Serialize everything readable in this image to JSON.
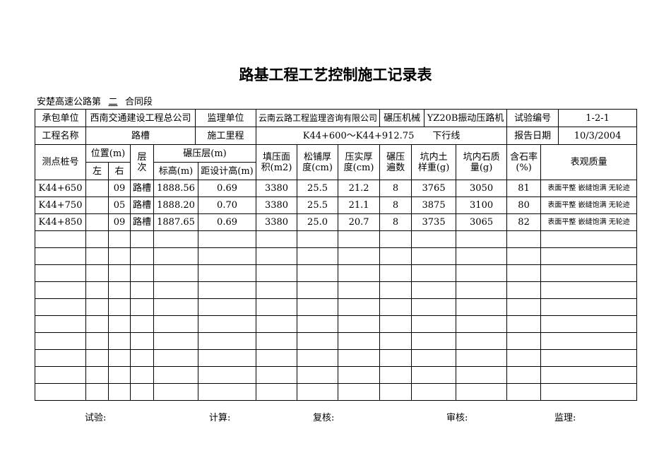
{
  "title": "路基工程工艺控制施工记录表",
  "subtitle": {
    "prefix": "安楚高速公路第",
    "section": "二",
    "suffix": "合同段"
  },
  "info": {
    "contractor_label": "承包单位",
    "contractor": "西南交通建设工程总公司",
    "supervisor_label": "监理单位",
    "supervisor": "云南云路工程监理咨询有限公司",
    "machine_label": "碾压机械",
    "machine": "YZ20B振动压路机",
    "test_no_label": "试验编号",
    "test_no": "1-2-1",
    "project_label": "工程名称",
    "project": "路槽",
    "mileage_label": "施工里程",
    "mileage": "K44+600～K44+912.75　　下行线",
    "date_label": "报告日期",
    "date": "10/3/2004"
  },
  "headers": {
    "pile": "测点桩号",
    "position": "位置(m)",
    "left": "左",
    "right": "右",
    "layer": "层次",
    "compact_layer": "碾压层(m)",
    "elevation": "标高(m)",
    "design_diff": "距设计高(m)",
    "fill_area": "填压面积(m2)",
    "loose": "松铺厚度(cm)",
    "compacted": "压实厚度(cm)",
    "passes": "碾压遍数",
    "soil": "坑内土样重(g)",
    "stone": "坑内石质量(g)",
    "rate": "含石率(%)",
    "quality": "表观质量"
  },
  "rows": [
    {
      "pile": "K44+650",
      "left": "",
      "right": "09",
      "layer": "路槽",
      "elevation": "1888.56",
      "design_diff": "0.69",
      "fill_area": "3380",
      "loose": "25.5",
      "compacted": "21.2",
      "passes": "8",
      "soil": "3765",
      "stone": "3050",
      "rate": "81",
      "quality": "表面平整 嵌缝饱满 无轮迹"
    },
    {
      "pile": "K44+750",
      "left": "",
      "right": "05",
      "layer": "路槽",
      "elevation": "1888.20",
      "design_diff": "0.70",
      "fill_area": "3380",
      "loose": "25.5",
      "compacted": "21.1",
      "passes": "8",
      "soil": "3875",
      "stone": "3100",
      "rate": "80",
      "quality": "表面平整 嵌缝饱满 无轮迹"
    },
    {
      "pile": "K44+850",
      "left": "",
      "right": "09",
      "layer": "路槽",
      "elevation": "1887.65",
      "design_diff": "0.69",
      "fill_area": "3380",
      "loose": "25.0",
      "compacted": "20.7",
      "passes": "8",
      "soil": "3735",
      "stone": "3065",
      "rate": "82",
      "quality": "表面平整 嵌缝饱满 无轮迹"
    }
  ],
  "footer": {
    "test": "试验:",
    "calc": "计算:",
    "review": "复核:",
    "audit": "审核:",
    "supervision": "监理:"
  }
}
